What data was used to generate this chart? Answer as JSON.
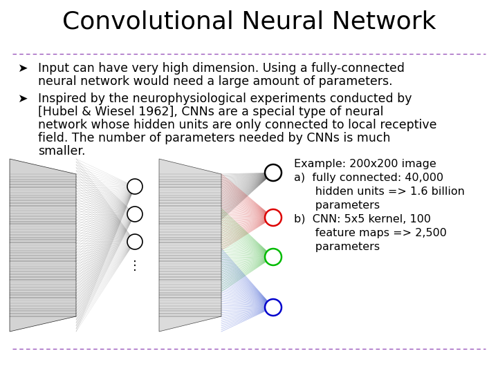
{
  "title": "Convolutional Neural Network",
  "title_fontsize": 26,
  "bg_color": "#ffffff",
  "dashed_line_color": "#9955bb",
  "bullet_symbol": "➤",
  "bullet1_lines": [
    "Input can have very high dimension. Using a fully-connected",
    "neural network would need a large amount of parameters."
  ],
  "bullet2_lines": [
    "Inspired by the neurophysiological experiments conducted by",
    "[Hubel & Wiesel 1962], CNNs are a special type of neural",
    "network whose hidden units are only connected to local receptive",
    "field. The number of parameters needed by CNNs is much",
    "smaller."
  ],
  "example_lines": [
    "Example: 200x200 image",
    "a)  fully connected: 40,000",
    "      hidden units => 1.6 billion",
    "      parameters",
    "b)  CNN: 5x5 kernel, 100",
    "      feature maps => 2,500",
    "      parameters"
  ],
  "bullet_fontsize": 12.5,
  "example_fontsize": 11.5,
  "font": "DejaVu Sans"
}
